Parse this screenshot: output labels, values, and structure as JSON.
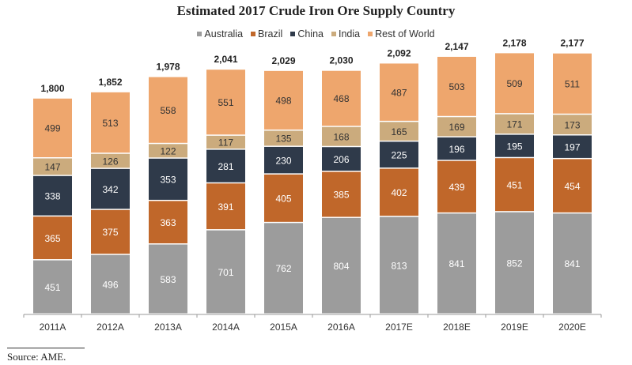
{
  "chart_data": {
    "type": "bar",
    "stacked": true,
    "title": "Estimated 2017 Crude Iron Ore Supply Country",
    "xlabel": "",
    "ylabel": "",
    "categories": [
      "2011A",
      "2012A",
      "2013A",
      "2014A",
      "2015A",
      "2016A",
      "2017E",
      "2018E",
      "2019E",
      "2020E"
    ],
    "series": [
      {
        "name": "Australia",
        "color": "#9c9c9c",
        "label_color": "#ffffff",
        "values": [
          451,
          496,
          583,
          701,
          762,
          804,
          813,
          841,
          852,
          841
        ]
      },
      {
        "name": "Brazil",
        "color": "#c0672a",
        "label_color": "#ffffff",
        "values": [
          365,
          375,
          363,
          391,
          405,
          385,
          402,
          439,
          451,
          454
        ]
      },
      {
        "name": "China",
        "color": "#2f3a4a",
        "label_color": "#ffffff",
        "values": [
          338,
          342,
          353,
          281,
          230,
          206,
          225,
          196,
          195,
          197
        ]
      },
      {
        "name": "India",
        "color": "#cbab7d",
        "label_color": "#333333",
        "values": [
          147,
          126,
          122,
          117,
          135,
          168,
          165,
          169,
          171,
          173
        ]
      },
      {
        "name": "Rest of World",
        "color": "#eea66d",
        "label_color": "#333333",
        "values": [
          499,
          513,
          558,
          551,
          498,
          468,
          487,
          503,
          509,
          511
        ]
      }
    ],
    "totals": [
      "1,800",
      "1,852",
      "1,978",
      "2,041",
      "2,029",
      "2,030",
      "2,092",
      "2,147",
      "2,178",
      "2,177"
    ],
    "legend_position": "top-center",
    "grid": false
  },
  "source": "Source: AME."
}
